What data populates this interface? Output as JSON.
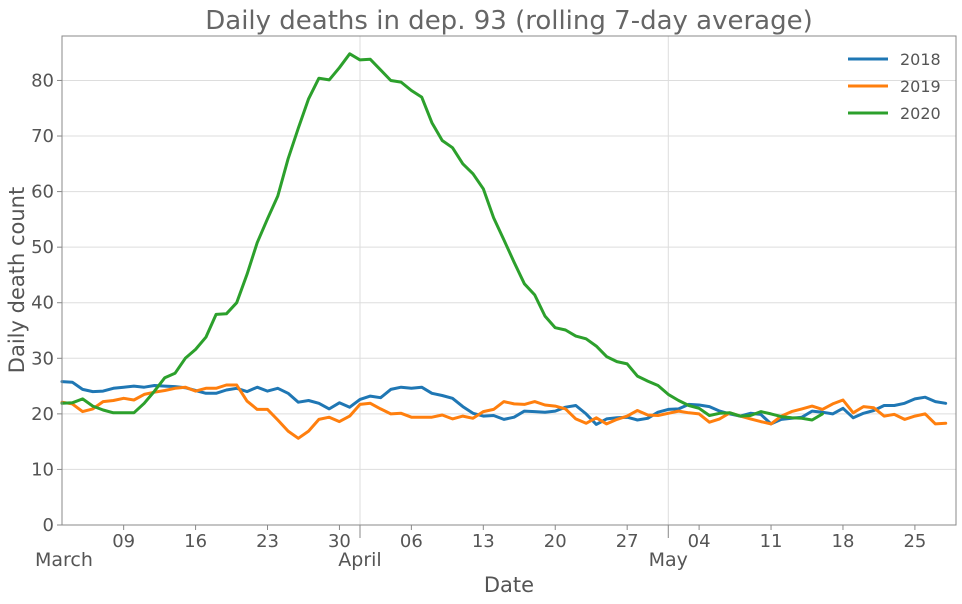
{
  "chart_data": {
    "type": "line",
    "title": "Daily deaths in dep. 93 (rolling 7-day average)",
    "xlabel": "Date",
    "ylabel": "Daily death count",
    "x_start": "2020-03-03",
    "x_end": "2020-05-29",
    "ylim": [
      0,
      88
    ],
    "yticks": [
      0,
      10,
      20,
      30,
      40,
      50,
      60,
      70,
      80
    ],
    "xticks": [
      {
        "date": "2020-03-09",
        "label": "09"
      },
      {
        "date": "2020-03-16",
        "label": "16"
      },
      {
        "date": "2020-03-23",
        "label": "23"
      },
      {
        "date": "2020-03-30",
        "label": "30"
      },
      {
        "date": "2020-04-06",
        "label": "06"
      },
      {
        "date": "2020-04-13",
        "label": "13"
      },
      {
        "date": "2020-04-20",
        "label": "20"
      },
      {
        "date": "2020-04-27",
        "label": "27"
      },
      {
        "date": "2020-05-04",
        "label": "04"
      },
      {
        "date": "2020-05-11",
        "label": "11"
      },
      {
        "date": "2020-05-18",
        "label": "18"
      },
      {
        "date": "2020-05-25",
        "label": "25"
      }
    ],
    "months": [
      {
        "date": "2020-03-03",
        "label": "March",
        "gridline": false
      },
      {
        "date": "2020-04-01",
        "label": "April",
        "gridline": true
      },
      {
        "date": "2020-05-01",
        "label": "May",
        "gridline": true
      }
    ],
    "grid": true,
    "legend_position": "top-right",
    "series": [
      {
        "name": "2018",
        "color": "#1f77b4",
        "values": [
          25.8,
          25.7,
          24.4,
          24.0,
          24.1,
          24.6,
          24.8,
          25.0,
          24.8,
          25.1,
          25.0,
          24.9,
          24.7,
          24.2,
          23.7,
          23.7,
          24.3,
          24.6,
          24.0,
          24.8,
          24.1,
          24.6,
          23.7,
          22.1,
          22.4,
          21.9,
          20.9,
          22.0,
          21.2,
          22.6,
          23.2,
          22.9,
          24.4,
          24.8,
          24.6,
          24.8,
          23.7,
          23.3,
          22.8,
          21.3,
          20.1,
          19.6,
          19.7,
          19.0,
          19.4,
          20.5,
          20.4,
          20.3,
          20.5,
          21.2,
          21.5,
          20.0,
          18.1,
          19.1,
          19.3,
          19.4,
          18.9,
          19.2,
          20.3,
          20.8,
          20.9,
          21.7,
          21.6,
          21.3,
          20.5,
          20.0,
          19.6,
          20.1,
          19.9,
          18.2,
          19.0,
          19.2,
          19.4,
          20.5,
          20.3,
          20.0,
          21.0,
          19.3,
          20.1,
          20.6,
          21.5,
          21.5,
          21.9,
          22.7,
          23.0,
          22.2,
          21.9
        ]
      },
      {
        "name": "2019",
        "color": "#ff7f0e",
        "values": [
          22.1,
          21.8,
          20.4,
          20.9,
          22.2,
          22.4,
          22.8,
          22.5,
          23.5,
          23.9,
          24.2,
          24.6,
          24.8,
          24.1,
          24.6,
          24.6,
          25.2,
          25.2,
          22.3,
          20.8,
          20.8,
          18.9,
          16.9,
          15.6,
          16.9,
          19.0,
          19.4,
          18.6,
          19.6,
          21.7,
          21.9,
          20.9,
          20.0,
          20.1,
          19.4,
          19.4,
          19.4,
          19.8,
          19.1,
          19.6,
          19.2,
          20.4,
          20.8,
          22.2,
          21.8,
          21.7,
          22.2,
          21.6,
          21.4,
          20.9,
          19.1,
          18.3,
          19.3,
          18.2,
          19.0,
          19.6,
          20.6,
          19.8,
          19.7,
          20.1,
          20.5,
          20.2,
          20.0,
          18.5,
          19.1,
          20.2,
          19.6,
          19.1,
          18.6,
          18.2,
          19.6,
          20.4,
          20.9,
          21.4,
          20.8,
          21.8,
          22.5,
          20.2,
          21.3,
          21.1,
          19.6,
          19.9,
          19.0,
          19.6,
          20.0,
          18.2,
          18.3
        ]
      },
      {
        "name": "2020",
        "color": "#2ca02c",
        "values": [
          21.9,
          22.0,
          22.7,
          21.4,
          20.7,
          20.2,
          20.2,
          20.2,
          21.9,
          24.1,
          26.5,
          27.3,
          30.0,
          31.6,
          33.8,
          37.9,
          38.0,
          40.0,
          45.1,
          50.8,
          55.1,
          59.2,
          65.9,
          71.4,
          76.7,
          80.4,
          80.1,
          82.3,
          84.8,
          83.7,
          83.8,
          81.9,
          80.0,
          79.7,
          78.2,
          77.0,
          72.4,
          69.2,
          67.9,
          65.0,
          63.2,
          60.5,
          55.3,
          51.3,
          47.3,
          43.4,
          41.4,
          37.6,
          35.5,
          35.1,
          34.0,
          33.5,
          32.2,
          30.3,
          29.4,
          29.0,
          26.8,
          25.9,
          25.1,
          23.5,
          22.4,
          21.5,
          21.0,
          19.7,
          20.1,
          20.2,
          19.6,
          19.7,
          20.4,
          20.0,
          19.5,
          19.3,
          19.2,
          18.9,
          20.0
        ]
      }
    ]
  }
}
